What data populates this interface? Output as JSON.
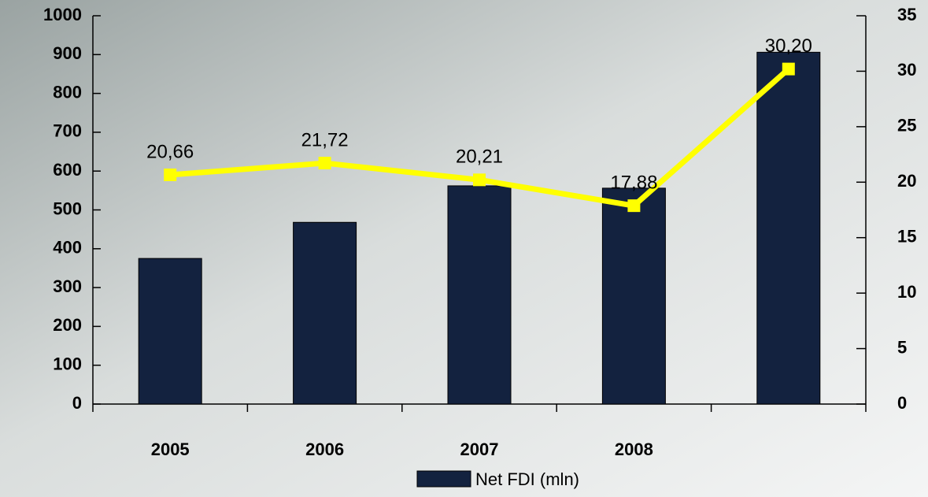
{
  "chart_data": {
    "type": "bar",
    "categories": [
      "2005",
      "2006",
      "2007",
      "2008",
      null
    ],
    "series": [
      {
        "name": "Net FDI  (mln)",
        "color": "#13223f",
        "values": [
          375,
          468,
          562,
          556,
          906
        ]
      },
      {
        "type": "line",
        "axis": "y2",
        "color": "#ffff00",
        "values": [
          20.66,
          21.72,
          20.21,
          17.88,
          30.2
        ],
        "value_labels": [
          "20,66",
          "21,72",
          "20,21",
          "17,88",
          "30,20"
        ]
      }
    ],
    "ylim": [
      0,
      1000
    ],
    "yticks": [
      0,
      100,
      200,
      300,
      400,
      500,
      600,
      700,
      800,
      900,
      1000
    ],
    "y2lim": [
      0,
      35
    ],
    "y2ticks": [
      0,
      5,
      10,
      15,
      20,
      25,
      30,
      35
    ],
    "legend": "bottom"
  }
}
